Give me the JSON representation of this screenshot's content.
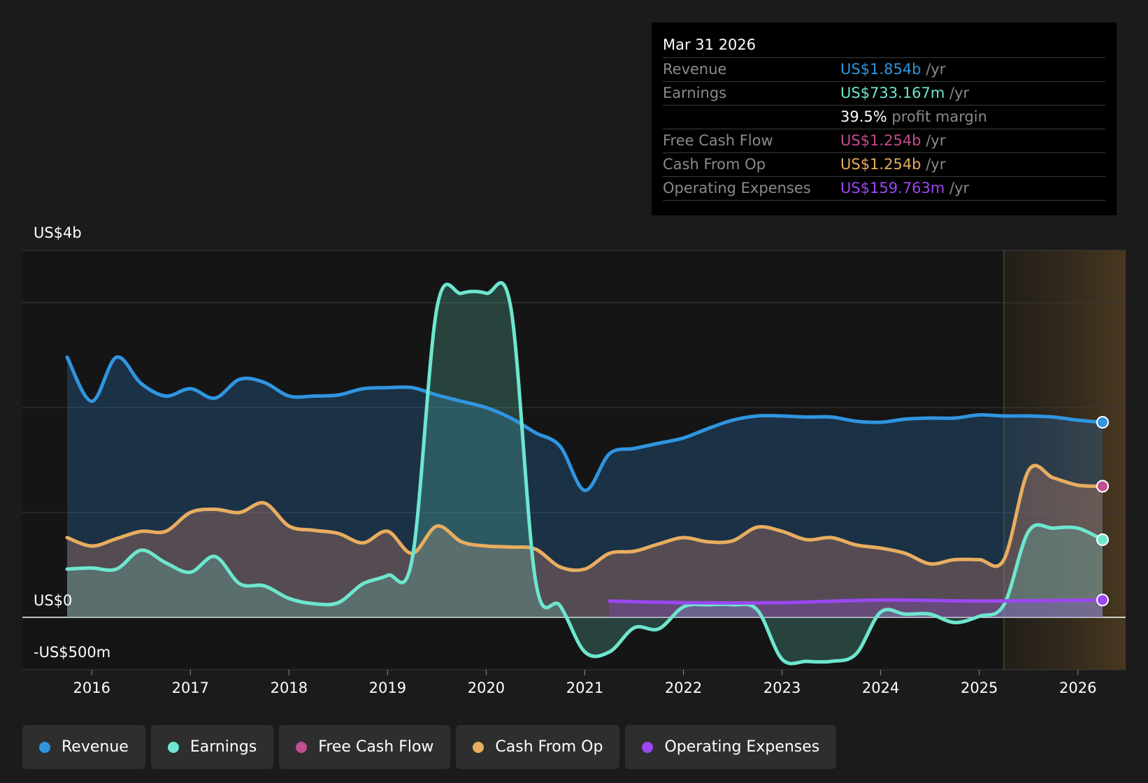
{
  "tooltip": {
    "date": "Mar 31 2026",
    "rows": [
      {
        "label": "Revenue",
        "value": "US$1.854b",
        "unit": "/yr",
        "color": "#2f95e0"
      },
      {
        "label": "Earnings",
        "value": "US$733.167m",
        "unit": "/yr",
        "color": "#6ee6cf"
      },
      {
        "label": "",
        "value": "39.5%",
        "unit": "profit margin",
        "color": "#ffffff"
      },
      {
        "label": "Free Cash Flow",
        "value": "US$1.254b",
        "unit": "/yr",
        "color": "#c24d8f"
      },
      {
        "label": "Cash From Op",
        "value": "US$1.254b",
        "unit": "/yr",
        "color": "#e8ad60"
      },
      {
        "label": "Operating Expenses",
        "value": "US$159.763m",
        "unit": "/yr",
        "color": "#9b48f0"
      }
    ]
  },
  "legend": [
    {
      "label": "Revenue",
      "color": "#2f95e0"
    },
    {
      "label": "Earnings",
      "color": "#6ee6cf"
    },
    {
      "label": "Free Cash Flow",
      "color": "#c24d8f"
    },
    {
      "label": "Cash From Op",
      "color": "#e8ad60"
    },
    {
      "label": "Operating Expenses",
      "color": "#9b48f0"
    }
  ],
  "chart_data": {
    "type": "area",
    "y_axis_labels": {
      "top": "US$4b",
      "zero": "US$0",
      "bottom": "-US$500m"
    },
    "ylim": [
      -500,
      3500
    ],
    "xlim": [
      2015.75,
      2026.25
    ],
    "x_ticks": [
      2016,
      2017,
      2018,
      2019,
      2020,
      2021,
      2022,
      2023,
      2024,
      2025,
      2026
    ],
    "x_tick_labels": [
      "2016",
      "2017",
      "2018",
      "2019",
      "2020",
      "2021",
      "2022",
      "2023",
      "2024",
      "2025",
      "2026"
    ],
    "y_gridlines": [
      -500,
      0,
      1000,
      2000,
      3000,
      3500
    ],
    "forecast_start": 2025.25,
    "grid": true,
    "legend_position": "bottom-left",
    "series": [
      {
        "name": "Revenue",
        "color": "#2f95e0",
        "x": [
          2015.75,
          2016.0,
          2016.25,
          2016.5,
          2016.75,
          2017.0,
          2017.25,
          2017.5,
          2017.75,
          2018.0,
          2018.25,
          2018.5,
          2018.75,
          2019.0,
          2019.25,
          2019.5,
          2019.75,
          2020.0,
          2020.25,
          2020.5,
          2020.75,
          2021.0,
          2021.25,
          2021.5,
          2021.75,
          2022.0,
          2022.25,
          2022.5,
          2022.75,
          2023.0,
          2023.25,
          2023.5,
          2023.75,
          2024.0,
          2024.25,
          2024.5,
          2024.75,
          2025.0,
          2025.25,
          2025.5,
          2025.75,
          2026.0,
          2026.25
        ],
        "values": [
          2480,
          2060,
          2480,
          2230,
          2110,
          2180,
          2090,
          2270,
          2240,
          2110,
          2110,
          2120,
          2180,
          2190,
          2190,
          2120,
          2060,
          2000,
          1900,
          1760,
          1630,
          1210,
          1560,
          1610,
          1660,
          1710,
          1800,
          1880,
          1920,
          1920,
          1910,
          1910,
          1870,
          1860,
          1890,
          1900,
          1900,
          1930,
          1920,
          1920,
          1910,
          1880,
          1860
        ]
      },
      {
        "name": "Earnings",
        "color": "#6ee6cf",
        "x": [
          2015.75,
          2016.0,
          2016.25,
          2016.5,
          2016.75,
          2017.0,
          2017.25,
          2017.5,
          2017.75,
          2018.0,
          2018.25,
          2018.5,
          2018.75,
          2019.0,
          2019.25,
          2019.5,
          2019.75,
          2020.0,
          2020.25,
          2020.5,
          2020.75,
          2021.0,
          2021.25,
          2021.5,
          2021.75,
          2022.0,
          2022.25,
          2022.5,
          2022.75,
          2023.0,
          2023.25,
          2023.5,
          2023.75,
          2024.0,
          2024.25,
          2024.5,
          2024.75,
          2025.0,
          2025.25,
          2025.5,
          2025.75,
          2026.0,
          2026.25
        ],
        "values": [
          460,
          470,
          460,
          640,
          520,
          430,
          580,
          320,
          300,
          180,
          130,
          140,
          320,
          400,
          560,
          2950,
          3090,
          3090,
          2950,
          350,
          110,
          -330,
          -330,
          -100,
          -110,
          100,
          120,
          120,
          70,
          -400,
          -420,
          -420,
          -350,
          50,
          30,
          30,
          -50,
          10,
          120,
          820,
          850,
          850,
          740
        ]
      },
      {
        "name": "Free Cash Flow",
        "color": "#c24d8f",
        "x": [
          2015.75,
          2016.0,
          2016.25,
          2016.5,
          2016.75,
          2017.0,
          2017.25,
          2017.5,
          2017.75,
          2018.0,
          2018.25,
          2018.5,
          2018.75,
          2019.0,
          2019.25,
          2019.5,
          2019.75,
          2020.0,
          2020.25,
          2020.5,
          2020.75,
          2021.0,
          2021.25,
          2021.5,
          2021.75,
          2022.0,
          2022.25,
          2022.5,
          2022.75,
          2023.0,
          2023.25,
          2023.5,
          2023.75,
          2024.0,
          2024.25,
          2024.5,
          2024.75,
          2025.0,
          2025.25,
          2025.5,
          2025.75,
          2026.0,
          2026.25
        ],
        "values": [
          760,
          680,
          750,
          820,
          820,
          1000,
          1030,
          1000,
          1090,
          870,
          830,
          800,
          710,
          820,
          610,
          870,
          720,
          680,
          670,
          650,
          480,
          460,
          610,
          630,
          700,
          760,
          720,
          730,
          860,
          820,
          740,
          760,
          690,
          660,
          610,
          510,
          550,
          550,
          550,
          1400,
          1330,
          1260,
          1250
        ]
      },
      {
        "name": "Cash From Op",
        "color": "#e8ad60",
        "x": [
          2015.75,
          2016.0,
          2016.25,
          2016.5,
          2016.75,
          2017.0,
          2017.25,
          2017.5,
          2017.75,
          2018.0,
          2018.25,
          2018.5,
          2018.75,
          2019.0,
          2019.25,
          2019.5,
          2019.75,
          2020.0,
          2020.25,
          2020.5,
          2020.75,
          2021.0,
          2021.25,
          2021.5,
          2021.75,
          2022.0,
          2022.25,
          2022.5,
          2022.75,
          2023.0,
          2023.25,
          2023.5,
          2023.75,
          2024.0,
          2024.25,
          2024.5,
          2024.75,
          2025.0,
          2025.25,
          2025.5,
          2025.75,
          2026.0,
          2026.25
        ],
        "values": [
          760,
          680,
          750,
          820,
          820,
          1000,
          1030,
          1000,
          1090,
          870,
          830,
          800,
          710,
          820,
          610,
          870,
          720,
          680,
          670,
          650,
          480,
          460,
          610,
          630,
          700,
          760,
          720,
          730,
          860,
          820,
          740,
          760,
          690,
          660,
          610,
          510,
          550,
          550,
          550,
          1400,
          1330,
          1260,
          1250
        ]
      },
      {
        "name": "Operating Expenses",
        "color": "#9b48f0",
        "x": [
          2021.25,
          2022.0,
          2023.0,
          2024.0,
          2025.0,
          2026.25
        ],
        "values": [
          155,
          140,
          140,
          165,
          155,
          165
        ]
      }
    ]
  }
}
